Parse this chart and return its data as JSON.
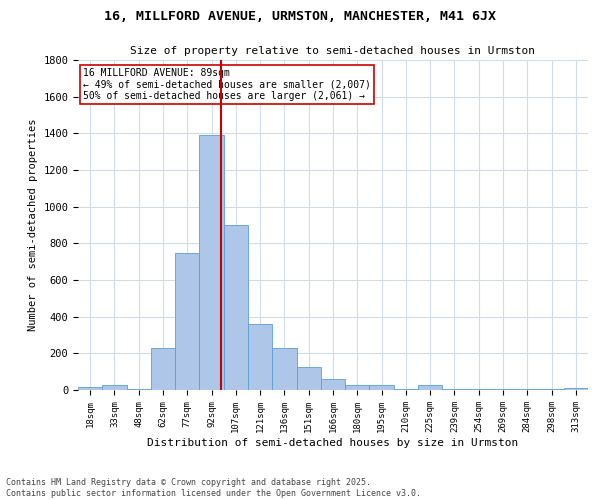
{
  "title_line1": "16, MILLFORD AVENUE, URMSTON, MANCHESTER, M41 6JX",
  "title_line2": "Size of property relative to semi-detached houses in Urmston",
  "xlabel": "Distribution of semi-detached houses by size in Urmston",
  "ylabel": "Number of semi-detached properties",
  "bin_labels": [
    "18sqm",
    "33sqm",
    "48sqm",
    "62sqm",
    "77sqm",
    "92sqm",
    "107sqm",
    "121sqm",
    "136sqm",
    "151sqm",
    "166sqm",
    "180sqm",
    "195sqm",
    "210sqm",
    "225sqm",
    "239sqm",
    "254sqm",
    "269sqm",
    "284sqm",
    "298sqm",
    "313sqm"
  ],
  "bin_values": [
    15,
    25,
    5,
    230,
    750,
    1390,
    900,
    360,
    230,
    125,
    60,
    30,
    30,
    5,
    25,
    5,
    5,
    5,
    5,
    5,
    10
  ],
  "bar_color": "#aec6e8",
  "bar_edge_color": "#5a9fd4",
  "annotation_title": "16 MILLFORD AVENUE: 89sqm",
  "annotation_line2": "← 49% of semi-detached houses are smaller (2,007)",
  "annotation_line3": "50% of semi-detached houses are larger (2,061) →",
  "vline_color": "#cc0000",
  "vline_x_bin": 5.4,
  "annotation_box_color": "#ffffff",
  "annotation_box_edge": "#cc0000",
  "ylim": [
    0,
    1800
  ],
  "footnote_line1": "Contains HM Land Registry data © Crown copyright and database right 2025.",
  "footnote_line2": "Contains public sector information licensed under the Open Government Licence v3.0.",
  "bg_color": "#ffffff",
  "grid_color": "#d0dce8"
}
